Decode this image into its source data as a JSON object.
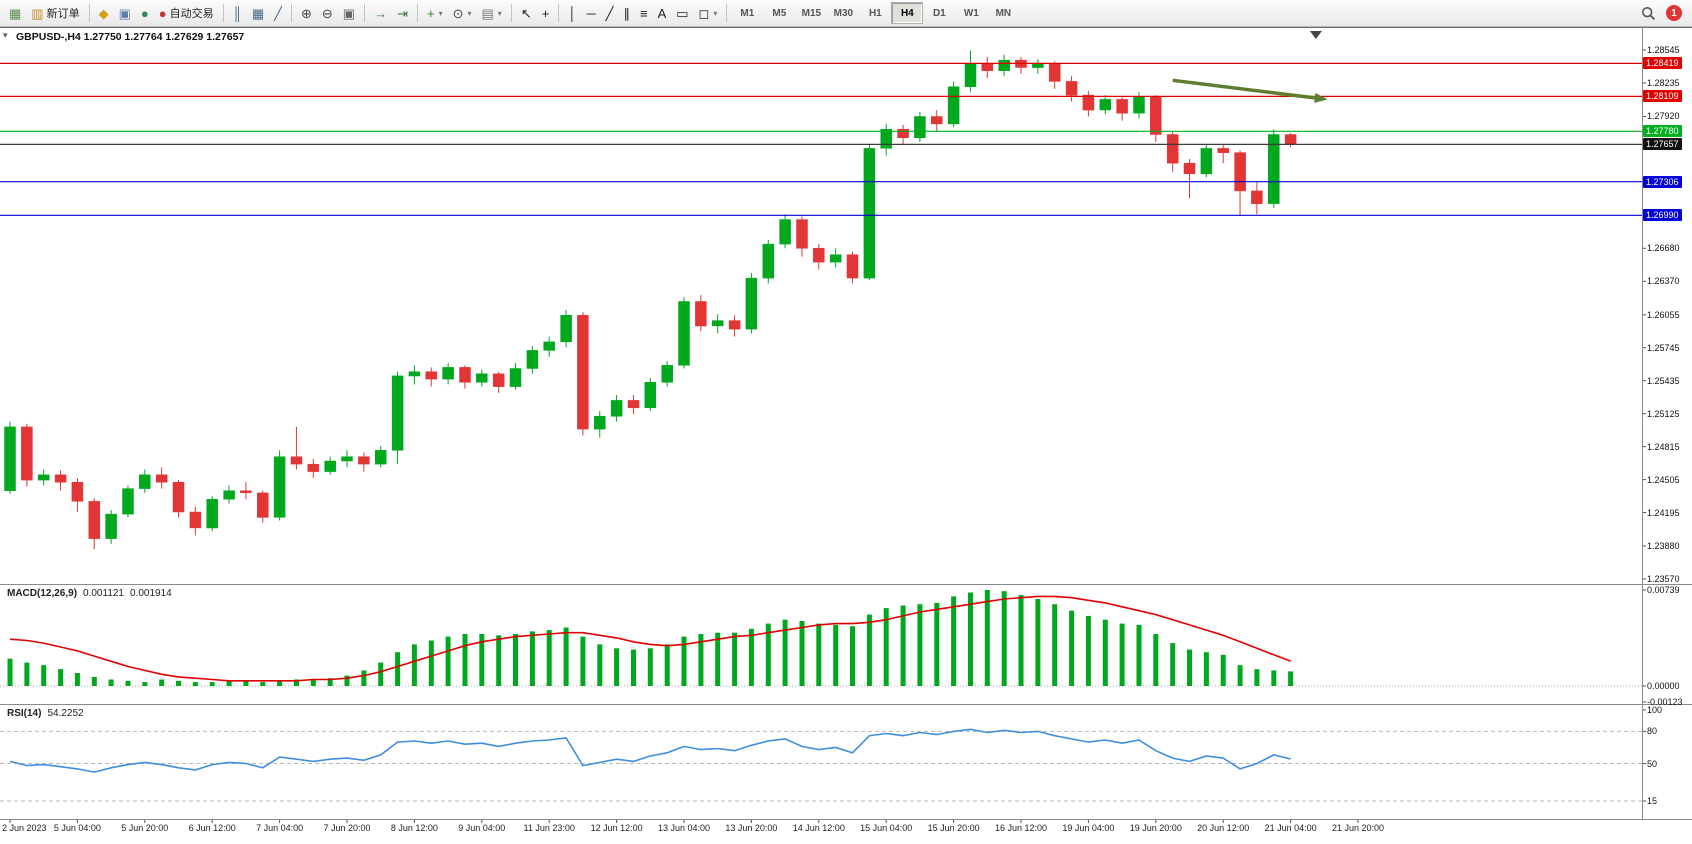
{
  "toolbar": {
    "groups": [
      {
        "items": [
          {
            "icon": "new-chart-icon"
          },
          {
            "icon": "new-order-icon",
            "label": "新订单"
          }
        ]
      },
      {
        "items": [
          {
            "icon": "metaeditor-icon"
          },
          {
            "icon": "print-icon"
          },
          {
            "icon": "layout-icon"
          },
          {
            "icon": "auto-trading-icon",
            "label": "自动交易"
          }
        ]
      },
      {
        "items": [
          {
            "icon": "bar-chart-icon"
          },
          {
            "icon": "candlestick-chart-icon"
          },
          {
            "icon": "line-chart-icon"
          }
        ]
      },
      {
        "items": [
          {
            "icon": "zoom-in-icon"
          },
          {
            "icon": "zoom-out-icon"
          },
          {
            "icon": "tile-windows-icon"
          }
        ]
      },
      {
        "items": [
          {
            "icon": "auto-scroll-icon"
          },
          {
            "icon": "chart-shift-icon"
          }
        ]
      },
      {
        "items": [
          {
            "icon": "indicators-icon",
            "dropdown": true
          },
          {
            "icon": "periods-icon",
            "dropdown": true
          },
          {
            "icon": "templates-icon",
            "dropdown": true
          }
        ]
      },
      {
        "items": [
          {
            "icon": "cursor-icon"
          },
          {
            "icon": "crosshair-icon"
          }
        ]
      },
      {
        "items": [
          {
            "icon": "vertical-line-icon"
          },
          {
            "icon": "horizontal-line-icon"
          },
          {
            "icon": "trendline-icon"
          },
          {
            "icon": "channel-icon"
          },
          {
            "icon": "fibonacci-icon"
          },
          {
            "icon": "text-icon"
          },
          {
            "icon": "text-label-icon"
          },
          {
            "icon": "shapes-icon",
            "dropdown": true
          }
        ]
      }
    ],
    "timeframes": [
      "M1",
      "M5",
      "M15",
      "M30",
      "H1",
      "H4",
      "D1",
      "W1",
      "MN"
    ],
    "active_timeframe": "H4",
    "notification_count": "1"
  },
  "chart": {
    "title_line": "GBPUSD-,H4 1.27750 1.27764 1.27629 1.27657",
    "one_click_glyph": "▾"
  },
  "indicators": {
    "macd": {
      "label": "MACD(12,26,9)",
      "value_main": "0.001121",
      "value_signal": "0.001914"
    },
    "rsi": {
      "label": "RSI(14)",
      "value": "54.2252"
    }
  },
  "chart_data": [
    {
      "type": "candlestick",
      "symbol": "GBPUSD-",
      "timeframe": "H4",
      "current": {
        "open": "1.27750",
        "high": "1.27764",
        "low": "1.27629",
        "close": "1.27657"
      },
      "ylim": [
        1.2357,
        1.28545
      ],
      "colors": {
        "up": "#00A81E",
        "down": "#E23535"
      },
      "candles": [
        [
          1.244,
          1.2505,
          1.2437,
          1.25
        ],
        [
          1.25,
          1.2503,
          1.2444,
          1.245
        ],
        [
          1.245,
          1.246,
          1.2445,
          1.2455
        ],
        [
          1.2455,
          1.2459,
          1.244,
          1.2448
        ],
        [
          1.2448,
          1.2452,
          1.242,
          1.243
        ],
        [
          1.243,
          1.2433,
          1.2385,
          1.2395
        ],
        [
          1.2395,
          1.2422,
          1.239,
          1.2418
        ],
        [
          1.2418,
          1.2445,
          1.2415,
          1.2442
        ],
        [
          1.2442,
          1.246,
          1.2438,
          1.2455
        ],
        [
          1.2455,
          1.2462,
          1.2442,
          1.2448
        ],
        [
          1.2448,
          1.245,
          1.2415,
          1.242
        ],
        [
          1.242,
          1.2425,
          1.2398,
          1.2405
        ],
        [
          1.2405,
          1.2435,
          1.2402,
          1.2432
        ],
        [
          1.2432,
          1.2445,
          1.2428,
          1.244
        ],
        [
          1.244,
          1.2448,
          1.2432,
          1.2438
        ],
        [
          1.2438,
          1.244,
          1.241,
          1.2415
        ],
        [
          1.2415,
          1.2478,
          1.2412,
          1.2472
        ],
        [
          1.2472,
          1.25,
          1.246,
          1.2465
        ],
        [
          1.2465,
          1.247,
          1.2452,
          1.2458
        ],
        [
          1.2458,
          1.2472,
          1.2455,
          1.2468
        ],
        [
          1.2468,
          1.2478,
          1.2462,
          1.2472
        ],
        [
          1.2472,
          1.2476,
          1.2458,
          1.2465
        ],
        [
          1.2465,
          1.2482,
          1.2462,
          1.2478
        ],
        [
          1.2478,
          1.2552,
          1.2465,
          1.2548
        ],
        [
          1.2548,
          1.2558,
          1.254,
          1.2552
        ],
        [
          1.2552,
          1.2556,
          1.2538,
          1.2545
        ],
        [
          1.2545,
          1.256,
          1.254,
          1.2556
        ],
        [
          1.2556,
          1.2558,
          1.2536,
          1.2542
        ],
        [
          1.2542,
          1.2554,
          1.2538,
          1.255
        ],
        [
          1.255,
          1.2552,
          1.2532,
          1.2538
        ],
        [
          1.2538,
          1.256,
          1.2535,
          1.2555
        ],
        [
          1.2555,
          1.2576,
          1.255,
          1.2572
        ],
        [
          1.2572,
          1.2585,
          1.2566,
          1.258
        ],
        [
          1.258,
          1.261,
          1.2575,
          1.2605
        ],
        [
          1.2605,
          1.2608,
          1.2492,
          1.2498
        ],
        [
          1.2498,
          1.2515,
          1.249,
          1.251
        ],
        [
          1.251,
          1.253,
          1.2505,
          1.2525
        ],
        [
          1.2525,
          1.253,
          1.2512,
          1.2518
        ],
        [
          1.2518,
          1.2546,
          1.2515,
          1.2542
        ],
        [
          1.2542,
          1.2562,
          1.2538,
          1.2558
        ],
        [
          1.2558,
          1.2622,
          1.2555,
          1.2618
        ],
        [
          1.2618,
          1.2624,
          1.259,
          1.2595
        ],
        [
          1.2595,
          1.2606,
          1.2588,
          1.26
        ],
        [
          1.26,
          1.2605,
          1.2585,
          1.2592
        ],
        [
          1.2592,
          1.2645,
          1.2588,
          1.264
        ],
        [
          1.264,
          1.2676,
          1.2635,
          1.2672
        ],
        [
          1.2672,
          1.27,
          1.2668,
          1.2695
        ],
        [
          1.2695,
          1.2698,
          1.266,
          1.2668
        ],
        [
          1.2668,
          1.2672,
          1.2648,
          1.2655
        ],
        [
          1.2655,
          1.2668,
          1.265,
          1.2662
        ],
        [
          1.2662,
          1.2665,
          1.2635,
          1.264
        ],
        [
          1.264,
          1.2766,
          1.2638,
          1.2762
        ],
        [
          1.2762,
          1.2785,
          1.2755,
          1.278
        ],
        [
          1.278,
          1.2784,
          1.2765,
          1.2772
        ],
        [
          1.2772,
          1.2796,
          1.2768,
          1.2792
        ],
        [
          1.2792,
          1.2798,
          1.2778,
          1.2785
        ],
        [
          1.2785,
          1.2825,
          1.2782,
          1.282
        ],
        [
          1.282,
          1.2854,
          1.2815,
          1.2842
        ],
        [
          1.2842,
          1.2848,
          1.2828,
          1.2835
        ],
        [
          1.2835,
          1.285,
          1.283,
          1.2845
        ],
        [
          1.2845,
          1.2848,
          1.2832,
          1.2838
        ],
        [
          1.2838,
          1.2846,
          1.2832,
          1.2842
        ],
        [
          1.2842,
          1.2844,
          1.2818,
          1.2825
        ],
        [
          1.2825,
          1.283,
          1.2806,
          1.2812
        ],
        [
          1.2812,
          1.2816,
          1.2792,
          1.2798
        ],
        [
          1.2798,
          1.2812,
          1.2794,
          1.2808
        ],
        [
          1.2808,
          1.281,
          1.2788,
          1.2795
        ],
        [
          1.2795,
          1.2815,
          1.279,
          1.281
        ],
        [
          1.281,
          1.2812,
          1.2768,
          1.2775
        ],
        [
          1.2775,
          1.2778,
          1.274,
          1.2748
        ],
        [
          1.2748,
          1.2752,
          1.2715,
          1.2738
        ],
        [
          1.2738,
          1.2766,
          1.2735,
          1.2762
        ],
        [
          1.2762,
          1.2765,
          1.2748,
          1.2758
        ],
        [
          1.2758,
          1.276,
          1.2699,
          1.2722
        ],
        [
          1.2722,
          1.273,
          1.27,
          1.271
        ],
        [
          1.271,
          1.278,
          1.2706,
          1.2775
        ],
        [
          1.2775,
          1.27764,
          1.27629,
          1.27657
        ]
      ],
      "hlines": [
        {
          "price": 1.28419,
          "label": "1.28419",
          "color": "#E00000"
        },
        {
          "price": 1.28109,
          "label": "1.28109",
          "color": "#E00000"
        },
        {
          "price": 1.2778,
          "label": "1.27780",
          "color": "#00B01E"
        },
        {
          "price": 1.27657,
          "label": "1.27657",
          "color": "#3C3C3C",
          "role": "current-price",
          "tag_bg": "#111111"
        },
        {
          "price": 1.27306,
          "label": "1.27306",
          "color": "#0000D8"
        },
        {
          "price": 1.2699,
          "label": "1.26990",
          "color": "#0000D8"
        }
      ],
      "price_ticks": [
        "1.28545",
        "1.28235",
        "1.27920",
        "1.26680",
        "1.26370",
        "1.26055",
        "1.25745",
        "1.25435",
        "1.25125",
        "1.24815",
        "1.24505",
        "1.24195",
        "1.23880",
        "1.23570"
      ],
      "x_labels": [
        "2 Jun 2023",
        "5 Jun 04:00",
        "5 Jun 20:00",
        "6 Jun 12:00",
        "7 Jun 04:00",
        "7 Jun 20:00",
        "8 Jun 12:00",
        "9 Jun 04:00",
        "11 Jun 23:00",
        "12 Jun 12:00",
        "13 Jun 04:00",
        "13 Jun 20:00",
        "14 Jun 12:00",
        "15 Jun 04:00",
        "15 Jun 20:00",
        "16 Jun 12:00",
        "19 Jun 04:00",
        "19 Jun 20:00",
        "20 Jun 12:00",
        "21 Jun 04:00",
        "21 Jun 20:00"
      ],
      "annotations": [
        {
          "type": "arrow",
          "start": {
            "bar": 69,
            "price": 1.2826
          },
          "end": {
            "bar": 78.2,
            "price": 1.2808
          },
          "color": "#5C7E2E",
          "note": "downward sloping trend arrow"
        }
      ],
      "shift_marker_bar": 77.5
    },
    {
      "type": "bar",
      "title": "MACD(12,26,9)",
      "current_macd": 0.001121,
      "current_signal": 0.001914,
      "scale_max": 0.00739,
      "colors": {
        "histogram": "#00A81E",
        "signal": "#E00000"
      },
      "scale_labels": [
        {
          "text": "0.00739",
          "v": 0.00739
        },
        {
          "text": "0.00000",
          "v": 0.0
        },
        {
          "text": "-0.00123",
          "v": -0.00123
        }
      ],
      "values": [
        0.0021,
        0.0018,
        0.0016,
        0.0013,
        0.001,
        0.0007,
        0.0005,
        0.0004,
        0.0003,
        0.0005,
        0.0004,
        0.0003,
        0.0003,
        0.0004,
        0.0004,
        0.0003,
        0.0004,
        0.0005,
        0.0005,
        0.0006,
        0.0008,
        0.0012,
        0.0018,
        0.0026,
        0.0032,
        0.0035,
        0.0038,
        0.004,
        0.004,
        0.0039,
        0.004,
        0.0042,
        0.0043,
        0.0045,
        0.0038,
        0.0032,
        0.0029,
        0.0028,
        0.0029,
        0.0032,
        0.0038,
        0.004,
        0.0041,
        0.0041,
        0.0044,
        0.0048,
        0.0051,
        0.005,
        0.0048,
        0.0047,
        0.0046,
        0.0055,
        0.006,
        0.0062,
        0.0063,
        0.0064,
        0.0069,
        0.0072,
        0.00739,
        0.0073,
        0.007,
        0.0067,
        0.0063,
        0.0058,
        0.0054,
        0.0051,
        0.0048,
        0.0047,
        0.004,
        0.0033,
        0.0028,
        0.0026,
        0.0024,
        0.0016,
        0.0013,
        0.0012,
        0.001121
      ],
      "signal": [
        0.0036,
        0.0035,
        0.0033,
        0.003,
        0.0027,
        0.0023,
        0.0019,
        0.0015,
        0.0012,
        0.0009,
        0.0007,
        0.0006,
        0.0005,
        0.0004,
        0.0004,
        0.0004,
        0.0004,
        0.0004,
        0.0005,
        0.0005,
        0.0006,
        0.0008,
        0.0011,
        0.0015,
        0.0019,
        0.0023,
        0.0027,
        0.0031,
        0.0034,
        0.0036,
        0.0038,
        0.0039,
        0.004,
        0.0041,
        0.0041,
        0.0039,
        0.0037,
        0.0034,
        0.0032,
        0.0031,
        0.0032,
        0.0034,
        0.0036,
        0.0038,
        0.0039,
        0.0041,
        0.0043,
        0.0045,
        0.0047,
        0.0048,
        0.0048,
        0.0049,
        0.0051,
        0.0054,
        0.0057,
        0.0059,
        0.0061,
        0.0063,
        0.0065,
        0.0067,
        0.0068,
        0.0069,
        0.0069,
        0.0068,
        0.0066,
        0.0064,
        0.0061,
        0.0058,
        0.0055,
        0.0051,
        0.0047,
        0.0043,
        0.0039,
        0.0034,
        0.0029,
        0.0024,
        0.001914
      ]
    },
    {
      "type": "line",
      "title": "RSI(14)",
      "current": 54.2252,
      "ylim": [
        0,
        100
      ],
      "color": "#3E8EDE",
      "levels": [
        80,
        50,
        15
      ],
      "scale_labels": [
        {
          "text": "100",
          "v": 100
        },
        {
          "text": "80",
          "v": 80
        },
        {
          "text": "50",
          "v": 50
        },
        {
          "text": "15",
          "v": 15
        }
      ],
      "values": [
        52,
        48,
        49,
        47,
        45,
        42,
        46,
        49,
        51,
        49,
        46,
        44,
        49,
        51,
        50,
        46,
        56,
        54,
        52,
        54,
        55,
        53,
        58,
        70,
        71,
        69,
        71,
        68,
        69,
        66,
        69,
        71,
        72,
        74,
        48,
        51,
        54,
        52,
        57,
        60,
        66,
        63,
        64,
        62,
        67,
        71,
        73,
        66,
        63,
        65,
        60,
        76,
        78,
        76,
        79,
        77,
        80,
        82,
        79,
        81,
        79,
        80,
        76,
        73,
        70,
        72,
        69,
        72,
        62,
        55,
        52,
        57,
        55,
        45,
        50,
        58,
        54.2252
      ]
    }
  ]
}
